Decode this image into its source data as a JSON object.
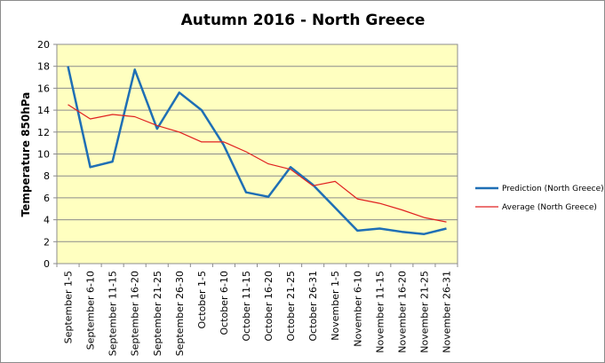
{
  "chart_data": {
    "type": "line",
    "title": "Autumn 2016 - North Greece",
    "xlabel": "",
    "ylabel": "Temperature 850hPa",
    "ylim": [
      0,
      20
    ],
    "yticks": [
      0,
      2,
      4,
      6,
      8,
      10,
      12,
      14,
      16,
      18,
      20
    ],
    "grid": true,
    "legend_position": "right",
    "plot_background": "#ffffc0",
    "categories": [
      "September 1-5",
      "September 6-10",
      "September 11-15",
      "September 16-20",
      "September 21-25",
      "September 26-30",
      "October 1-5",
      "October 6-10",
      "October 11-15",
      "October 16-20",
      "October 21-25",
      "October 26-31",
      "November 1-5",
      "November 6-10",
      "November 11-15",
      "November 16-20",
      "November 21-25",
      "November 26-31"
    ],
    "series": [
      {
        "name": "Prediction (North Greece)",
        "color": "#1f6fb5",
        "values": [
          18.0,
          8.8,
          9.3,
          17.7,
          12.3,
          15.6,
          14.0,
          10.8,
          6.5,
          6.1,
          8.8,
          7.2,
          5.1,
          3.0,
          3.2,
          2.9,
          2.7,
          3.2
        ]
      },
      {
        "name": "Average (North Greece)",
        "color": "#e02020",
        "values": [
          14.5,
          13.2,
          13.6,
          13.4,
          12.6,
          12.0,
          11.1,
          11.1,
          10.2,
          9.1,
          8.6,
          7.1,
          7.5,
          5.9,
          5.5,
          4.9,
          4.2,
          3.8
        ]
      }
    ]
  }
}
